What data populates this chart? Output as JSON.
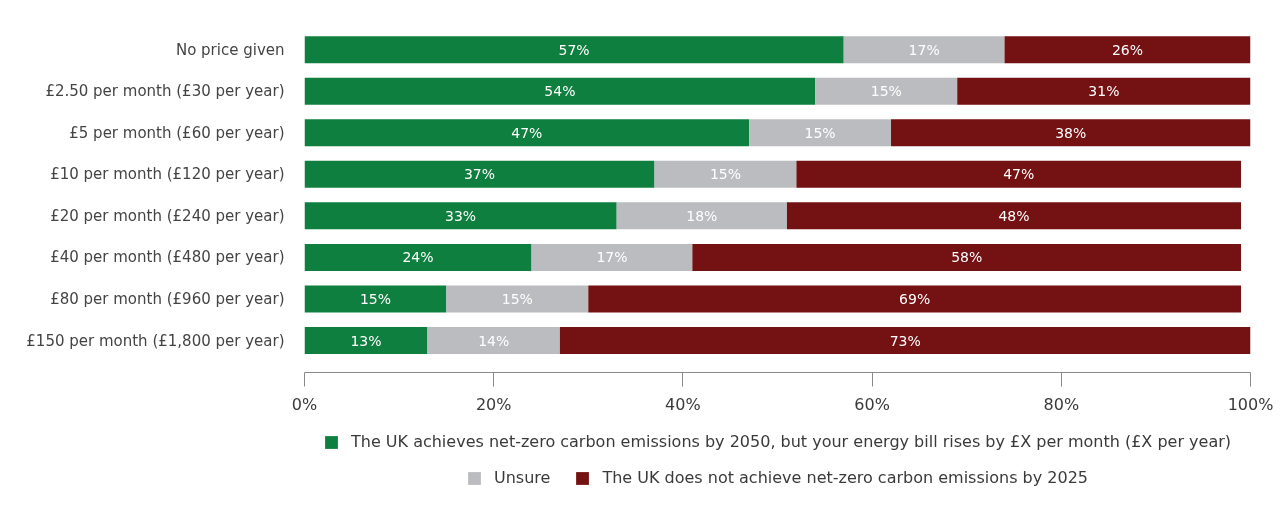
{
  "chart_data": {
    "type": "bar",
    "orientation": "horizontal",
    "stacked": true,
    "categories": [
      "No price given",
      "£2.50 per month (£30 per year)",
      "£5 per month (£60 per year)",
      "£10 per month (£120 per year)",
      "£20 per month (£240 per year)",
      "£40 per month (£480 per year)",
      "£80 per month (£960 per year)",
      "£150 per month (£1,800 per year)"
    ],
    "series": [
      {
        "name": "The UK achieves net-zero carbon emissions by 2050, but your energy bill rises by £X per month (£X per year)",
        "color": "#0f7f3f",
        "values": [
          57,
          54,
          47,
          37,
          33,
          24,
          15,
          13
        ],
        "value_labels": [
          "57%",
          "54%",
          "47%",
          "37%",
          "33%",
          "24%",
          "15%",
          "13%"
        ]
      },
      {
        "name": "Unsure",
        "color": "#bbbcbf",
        "values": [
          17,
          15,
          15,
          15,
          18,
          17,
          15,
          14
        ],
        "value_labels": [
          "17%",
          "15%",
          "15%",
          "15%",
          "18%",
          "17%",
          "15%",
          "14%"
        ]
      },
      {
        "name": "The UK does not achieve net-zero carbon emissions by 2025",
        "color": "#741112",
        "values": [
          26,
          31,
          38,
          47,
          48,
          58,
          69,
          73
        ],
        "value_labels": [
          "26%",
          "31%",
          "38%",
          "47%",
          "48%",
          "58%",
          "69%",
          "73%"
        ]
      }
    ],
    "xlim": [
      0,
      100
    ],
    "xticks": [
      {
        "value": 0,
        "label": "0%"
      },
      {
        "value": 20,
        "label": "20%"
      },
      {
        "value": 40,
        "label": "40%"
      },
      {
        "value": 60,
        "label": "60%"
      },
      {
        "value": 80,
        "label": "80%"
      },
      {
        "value": 100,
        "label": "100%"
      }
    ],
    "grid": false,
    "legend": "bottom"
  }
}
